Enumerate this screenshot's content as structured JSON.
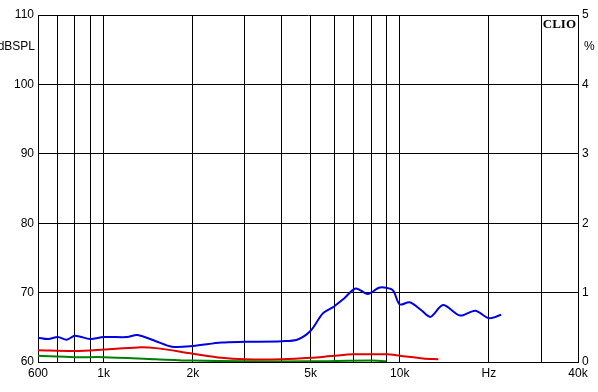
{
  "chart_data": {
    "type": "line",
    "title": "CLIO",
    "ylabel": "dBSPL",
    "y2label": "%",
    "log": "x",
    "grid": true,
    "tick_labels": true,
    "xlim": [
      600,
      40000
    ],
    "xticks": [
      {
        "value": 600,
        "label": "600"
      },
      {
        "value": 700,
        "label": null
      },
      {
        "value": 800,
        "label": null
      },
      {
        "value": 900,
        "label": null
      },
      {
        "value": 1000,
        "label": "1k"
      },
      {
        "value": 2000,
        "label": "2k"
      },
      {
        "value": 3000,
        "label": null
      },
      {
        "value": 4000,
        "label": null
      },
      {
        "value": 5000,
        "label": "5k"
      },
      {
        "value": 6000,
        "label": null
      },
      {
        "value": 7000,
        "label": null
      },
      {
        "value": 8000,
        "label": null
      },
      {
        "value": 9000,
        "label": null
      },
      {
        "value": 10000,
        "label": "10k"
      },
      {
        "value": 20000,
        "label": "Hz"
      },
      {
        "value": 30000,
        "label": null
      },
      {
        "value": 40000,
        "label": "40k"
      }
    ],
    "ylim": [
      60,
      110
    ],
    "yticks": [
      60,
      70,
      80,
      90,
      100,
      110
    ],
    "y2lim": [
      0,
      5
    ],
    "y2ticks": [
      0,
      1,
      2,
      3,
      4,
      5
    ],
    "series": [
      {
        "color": "#0000e0",
        "x": [
          600,
          650,
          700,
          750,
          800,
          900,
          1000,
          1200,
          1300,
          1500,
          1700,
          2000,
          2500,
          3000,
          4000,
          4500,
          5000,
          5500,
          6000,
          6500,
          7100,
          7800,
          8500,
          9000,
          9500,
          10000,
          10800,
          11800,
          12700,
          14000,
          16000,
          18000,
          20000,
          22000
        ],
        "values": [
          63.5,
          63.3,
          63.6,
          63.2,
          63.8,
          63.3,
          63.6,
          63.6,
          63.9,
          63.0,
          62.2,
          62.3,
          62.8,
          62.9,
          63.0,
          63.2,
          64.5,
          67.0,
          68.0,
          69.2,
          70.6,
          69.8,
          70.7,
          70.7,
          70.3,
          68.3,
          68.6,
          67.5,
          66.5,
          68.2,
          66.7,
          67.4,
          66.3,
          66.8
        ]
      },
      {
        "color": "#e00000",
        "x": [
          600,
          800,
          1000,
          1300,
          1500,
          2000,
          2500,
          3000,
          4000,
          5000,
          6000,
          7000,
          9000,
          10000,
          12000,
          13500
        ],
        "values": [
          61.7,
          61.6,
          61.8,
          62.1,
          62.0,
          61.2,
          60.6,
          60.4,
          60.4,
          60.6,
          60.9,
          61.1,
          61.1,
          60.9,
          60.5,
          60.4
        ]
      },
      {
        "color": "#008000",
        "x": [
          600,
          800,
          1000,
          1500,
          2000,
          3000,
          5000,
          8000,
          9000
        ],
        "values": [
          60.9,
          60.7,
          60.7,
          60.4,
          60.2,
          60.1,
          60.1,
          60.2,
          60.1
        ]
      }
    ]
  }
}
